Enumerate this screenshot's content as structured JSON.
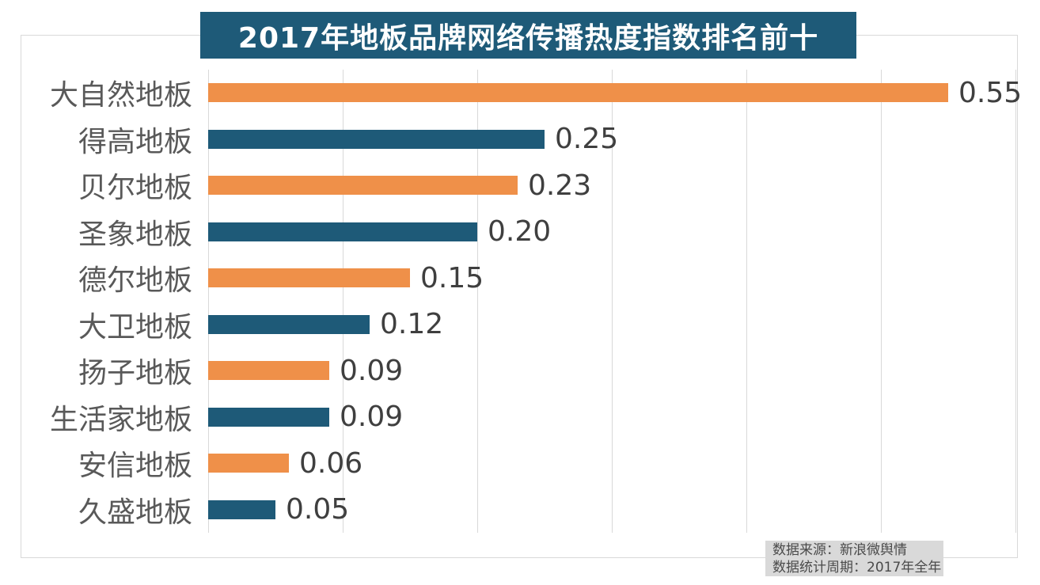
{
  "title": "2017年地板品牌网络传播热度指数排名前十",
  "footer": {
    "line1": "数据来源：新浪微舆情",
    "line2": "数据统计周期：2017年全年"
  },
  "colors": {
    "title_bg": "#1e5a78",
    "title_text": "#ffffff",
    "bar_orange": "#ef9049",
    "bar_teal": "#1e5a78",
    "category_label": "#595959",
    "value_label": "#3f3f3f",
    "gridline": "#d9d9d9",
    "frame_border": "#d9d9d9",
    "note_bg": "#d9d9d9",
    "note_text": "#4a4a4a"
  },
  "chart_data": {
    "type": "bar",
    "orientation": "horizontal",
    "title": "2017年地板品牌网络传播热度指数排名前十",
    "categories": [
      "大自然地板",
      "得高地板",
      "贝尔地板",
      "圣象地板",
      "德尔地板",
      "大卫地板",
      "扬子地板",
      "生活家地板",
      "安信地板",
      "久盛地板"
    ],
    "values": [
      0.55,
      0.25,
      0.23,
      0.2,
      0.15,
      0.12,
      0.09,
      0.09,
      0.06,
      0.05
    ],
    "value_labels": [
      "0.55",
      "0.25",
      "0.23",
      "0.20",
      "0.15",
      "0.12",
      "0.09",
      "0.09",
      "0.06",
      "0.05"
    ],
    "bar_colors_alternating": [
      "#ef9049",
      "#1e5a78"
    ],
    "xlabel": "",
    "ylabel": "",
    "xlim": [
      0,
      0.6
    ],
    "grid_interval": 0.1,
    "grid": true,
    "legend": false,
    "value_labels_position": "outside-end",
    "source": "数据来源：新浪微舆情",
    "period": "数据统计周期：2017年全年"
  }
}
